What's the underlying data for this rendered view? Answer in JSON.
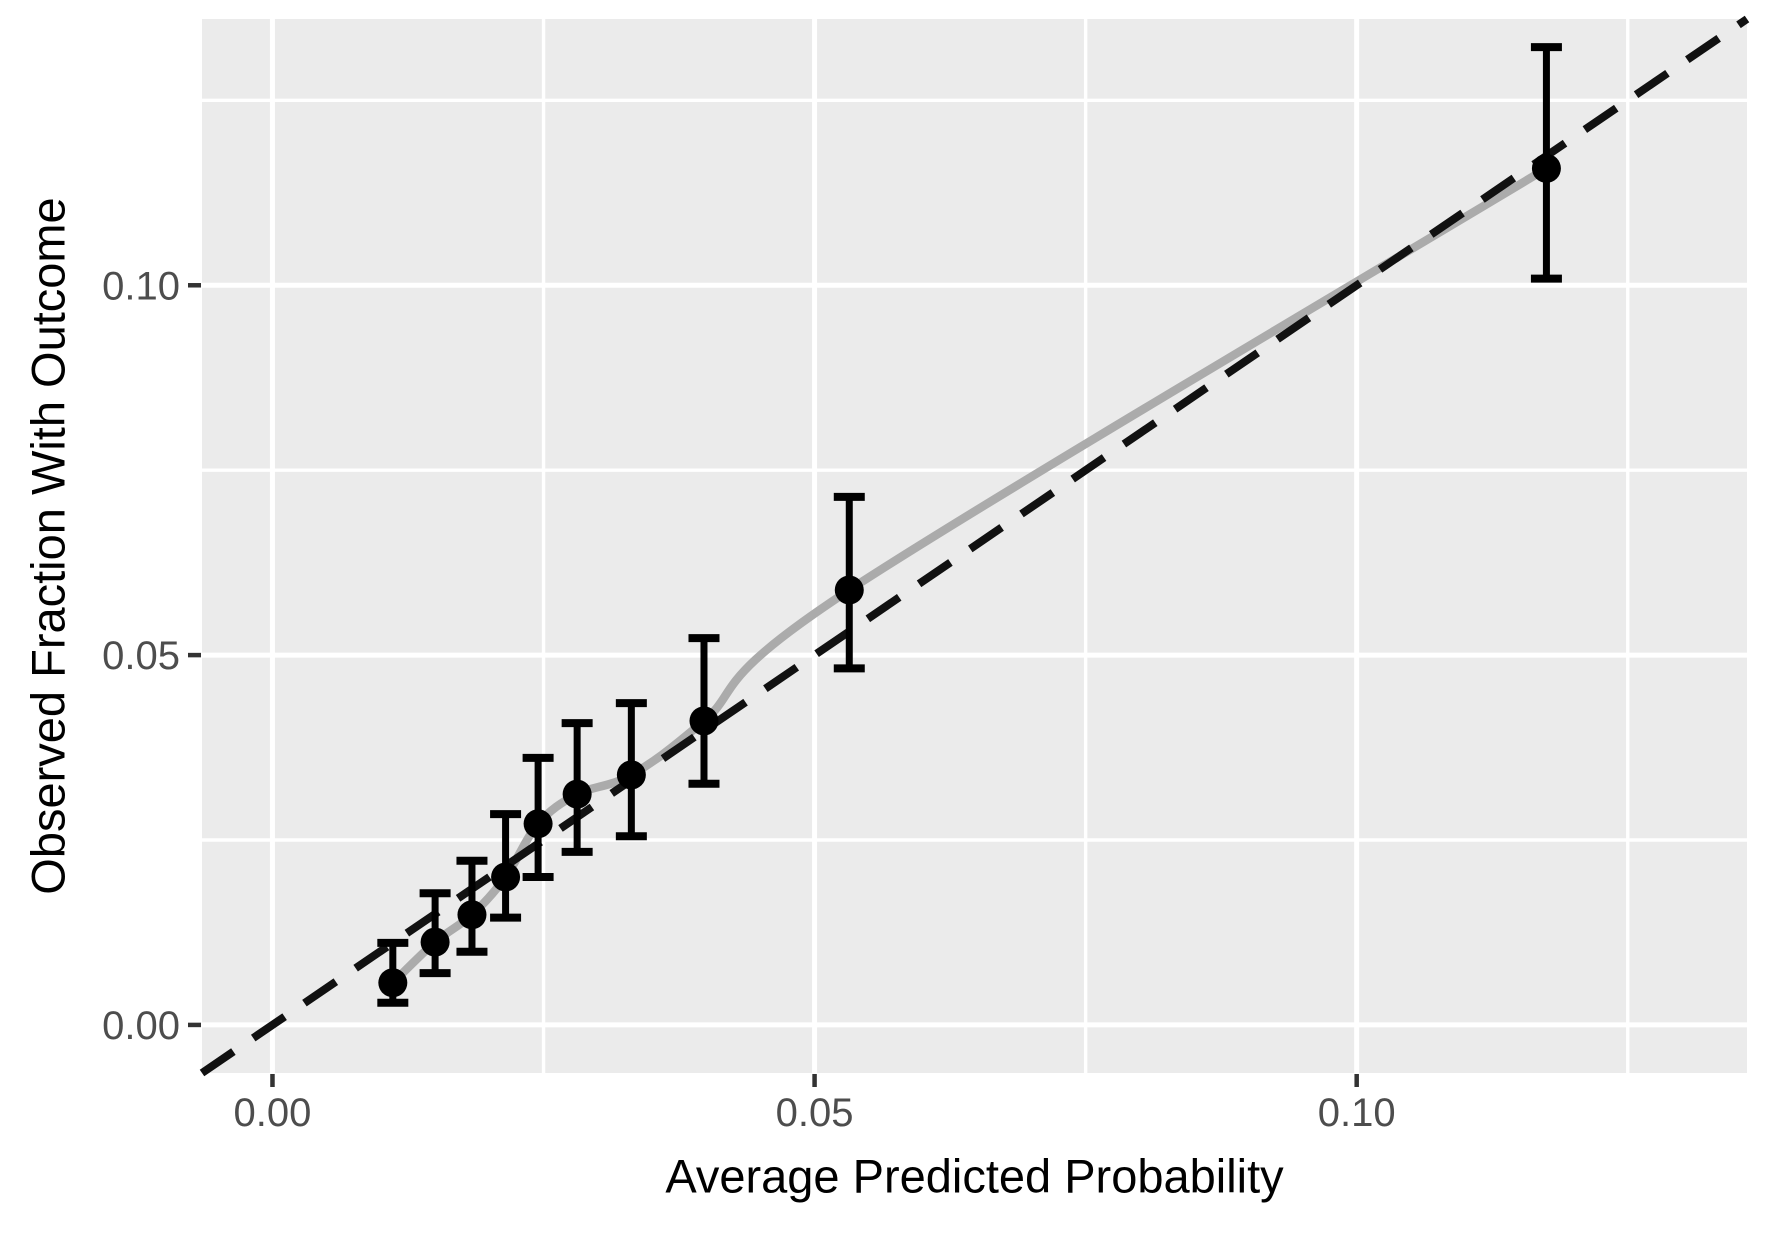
{
  "chart_data": {
    "type": "scatter",
    "subtype": "calibration-pointrange-with-smooth-and-identity",
    "title": "",
    "xlabel": "Average Predicted Probability",
    "ylabel": "Observed Fraction With Outcome",
    "xlim": [
      -0.0065,
      0.136
    ],
    "ylim": [
      -0.0065,
      0.136
    ],
    "x_ticks": [
      {
        "value": 0.0,
        "label": "0.00"
      },
      {
        "value": 0.05,
        "label": "0.05"
      },
      {
        "value": 0.1,
        "label": "0.10"
      }
    ],
    "y_ticks": [
      {
        "value": 0.0,
        "label": "0.00"
      },
      {
        "value": 0.05,
        "label": "0.05"
      },
      {
        "value": 0.1,
        "label": "0.10"
      }
    ],
    "x_minor_gridlines": [
      0.025,
      0.075,
      0.125
    ],
    "y_minor_gridlines": [
      0.025,
      0.075,
      0.125
    ],
    "grid": "on",
    "legend": "none",
    "identity_line": {
      "style": "dashed",
      "from": [
        -0.0065,
        -0.0065
      ],
      "to": [
        0.136,
        0.136
      ]
    },
    "series": [
      {
        "name": "observed-vs-predicted",
        "type": "pointrange",
        "points": [
          {
            "x": 0.0111,
            "y": 0.0057,
            "ymin": 0.003,
            "ymax": 0.0111
          },
          {
            "x": 0.015,
            "y": 0.0112,
            "ymin": 0.007,
            "ymax": 0.0178
          },
          {
            "x": 0.0184,
            "y": 0.0149,
            "ymin": 0.0099,
            "ymax": 0.0222
          },
          {
            "x": 0.0215,
            "y": 0.02,
            "ymin": 0.0145,
            "ymax": 0.0285
          },
          {
            "x": 0.0245,
            "y": 0.0272,
            "ymin": 0.02,
            "ymax": 0.0361
          },
          {
            "x": 0.0281,
            "y": 0.0312,
            "ymin": 0.0234,
            "ymax": 0.0408
          },
          {
            "x": 0.0331,
            "y": 0.0338,
            "ymin": 0.0255,
            "ymax": 0.0435
          },
          {
            "x": 0.0398,
            "y": 0.0411,
            "ymin": 0.0326,
            "ymax": 0.0523
          },
          {
            "x": 0.0532,
            "y": 0.0588,
            "ymin": 0.0482,
            "ymax": 0.0714
          },
          {
            "x": 0.1175,
            "y": 0.1158,
            "ymin": 0.1009,
            "ymax": 0.1322
          }
        ]
      },
      {
        "name": "smooth-line",
        "type": "line",
        "through": "observed-vs-predicted"
      }
    ],
    "colors": {
      "panel_background": "#EBEBEB",
      "gridline": "#FFFFFF",
      "point": "#000000",
      "error_bar": "#000000",
      "smooth_line": "#ABABAB",
      "identity_line": "#111111",
      "tick_mark": "#333333",
      "tick_label": "#4D4D4D",
      "axis_title": "#000000",
      "outer_background": "#FFFFFF"
    }
  }
}
